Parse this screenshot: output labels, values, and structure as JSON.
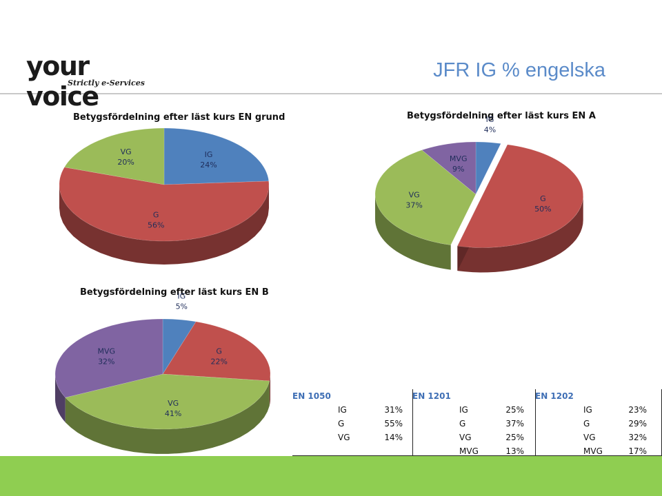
{
  "header": {
    "title": "JFR IG % engelska"
  },
  "logo": {
    "main": "your voice",
    "sub": "Strictly e-Services"
  },
  "colors": {
    "IG": "#4f81bd",
    "G": "#c0504d",
    "VG": "#9bbb59",
    "MVG": "#8064a2",
    "title": "#5b8bc9",
    "footer": "#8fce51"
  },
  "chart_data": [
    {
      "type": "pie",
      "title": "Betygsfördelning efter läst kurs EN grund",
      "categories": [
        "IG",
        "G",
        "VG"
      ],
      "values": [
        24,
        56,
        20
      ]
    },
    {
      "type": "pie",
      "title": "Betygsfördelning efter läst kurs EN A",
      "categories": [
        "IG",
        "G",
        "VG",
        "MVG"
      ],
      "values": [
        4,
        50,
        37,
        9
      ]
    },
    {
      "type": "pie",
      "title": "Betygsfördelning efter läst kurs EN B",
      "categories": [
        "IG",
        "G",
        "VG",
        "MVG"
      ],
      "values": [
        5,
        22,
        41,
        32
      ]
    }
  ],
  "tables": [
    {
      "header": "EN 1050",
      "rows": [
        {
          "k": "IG",
          "v": "31%"
        },
        {
          "k": "G",
          "v": "55%"
        },
        {
          "k": "VG",
          "v": "14%"
        }
      ]
    },
    {
      "header": "EN 1201",
      "rows": [
        {
          "k": "IG",
          "v": "25%"
        },
        {
          "k": "G",
          "v": "37%"
        },
        {
          "k": "VG",
          "v": "25%"
        },
        {
          "k": "MVG",
          "v": "13%"
        }
      ]
    },
    {
      "header": "EN 1202",
      "rows": [
        {
          "k": "IG",
          "v": "23%"
        },
        {
          "k": "G",
          "v": "29%"
        },
        {
          "k": "VG",
          "v": "32%"
        },
        {
          "k": "MVG",
          "v": "17%"
        }
      ]
    }
  ]
}
